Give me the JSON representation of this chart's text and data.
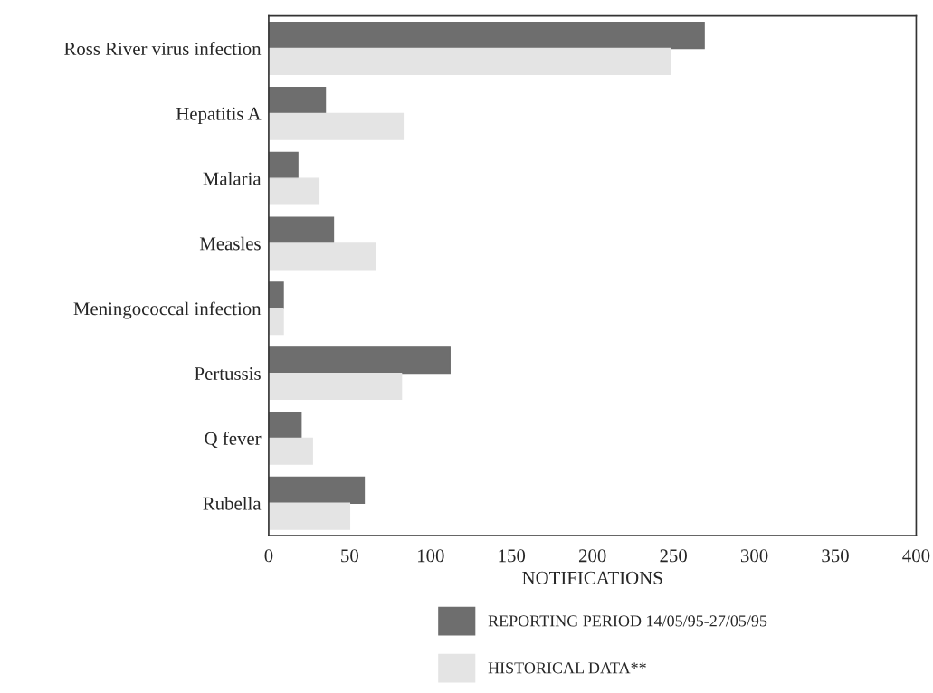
{
  "chart_data": {
    "type": "bar",
    "orientation": "horizontal",
    "xlabel": "NOTIFICATIONS",
    "categories": [
      "Ross River virus infection",
      "Hepatitis A",
      "Malaria",
      "Measles",
      "Meningococcal infection",
      "Pertussis",
      "Q fever",
      "Rubella"
    ],
    "series": [
      {
        "name": "REPORTING PERIOD 14/05/95-27/05/95",
        "color": "#6e6e6e",
        "values": [
          269,
          35,
          18,
          40,
          9,
          112,
          20,
          59
        ]
      },
      {
        "name": "HISTORICAL DATA**",
        "color": "#e4e4e4",
        "values": [
          248,
          83,
          31,
          66,
          9,
          82,
          27,
          50
        ]
      }
    ],
    "xlim": [
      0,
      400
    ],
    "xticks": [
      0,
      50,
      100,
      150,
      200,
      250,
      300,
      350,
      400
    ],
    "grid": false,
    "legend": "bottom"
  }
}
